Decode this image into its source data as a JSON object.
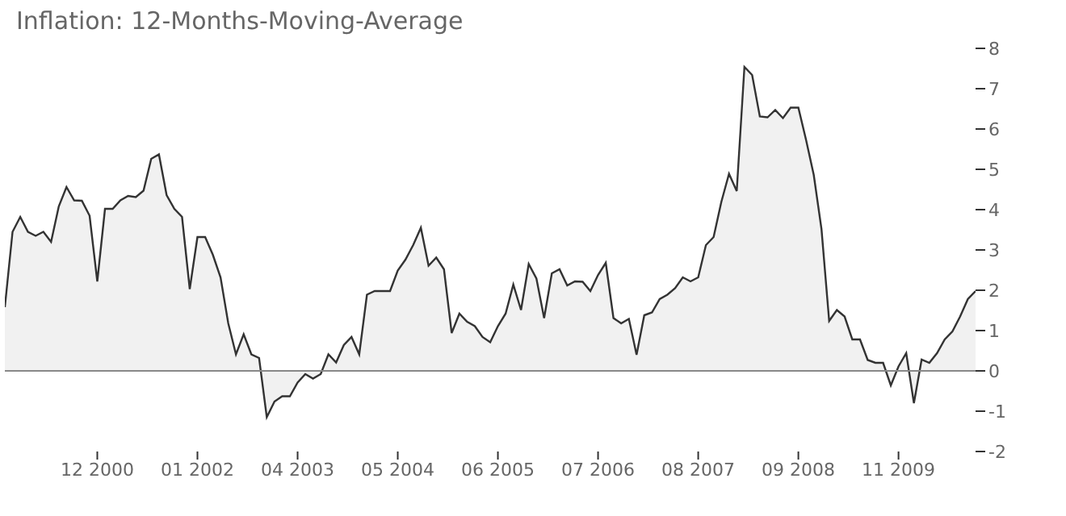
{
  "chart_data": {
    "type": "area",
    "title": "Inflation: 12-Months-Moving-Average",
    "categories": [
      null,
      null,
      null,
      null,
      null,
      null,
      null,
      null,
      null,
      null,
      null,
      null,
      "12 2000",
      null,
      null,
      null,
      null,
      null,
      null,
      null,
      null,
      null,
      null,
      null,
      null,
      "01 2002",
      null,
      null,
      null,
      null,
      null,
      null,
      null,
      null,
      null,
      null,
      null,
      null,
      "04 2003",
      null,
      null,
      null,
      null,
      null,
      null,
      null,
      null,
      null,
      null,
      null,
      null,
      "05 2004",
      null,
      null,
      null,
      null,
      null,
      null,
      null,
      null,
      null,
      null,
      null,
      null,
      "06 2005",
      null,
      null,
      null,
      null,
      null,
      null,
      null,
      null,
      null,
      null,
      null,
      null,
      "07 2006",
      null,
      null,
      null,
      null,
      null,
      null,
      null,
      null,
      null,
      null,
      null,
      null,
      "08 2007",
      null,
      null,
      null,
      null,
      null,
      null,
      null,
      null,
      null,
      null,
      null,
      null,
      "09 2008",
      null,
      null,
      null,
      null,
      null,
      null,
      null,
      null,
      null,
      null,
      null,
      null,
      "11 2009",
      null,
      null,
      null,
      null,
      null,
      null,
      null,
      null,
      null,
      null
    ],
    "series": [
      {
        "color": "#333333",
        "values": [
          1.58,
          3.45,
          3.82,
          3.45,
          3.35,
          3.45,
          3.2,
          4.08,
          4.56,
          4.23,
          4.22,
          3.85,
          2.22,
          4.02,
          4.02,
          4.23,
          4.34,
          4.31,
          4.47,
          5.26,
          5.37,
          4.36,
          4.02,
          3.82,
          2.03,
          3.32,
          3.32,
          2.88,
          2.32,
          1.18,
          0.41,
          0.91,
          0.41,
          0.32,
          -1.15,
          -0.76,
          -0.63,
          -0.63,
          -0.29,
          -0.08,
          -0.19,
          -0.08,
          0.41,
          0.21,
          0.64,
          0.84,
          0.41,
          1.89,
          1.98,
          1.98,
          1.98,
          2.49,
          2.76,
          3.12,
          3.55,
          2.61,
          2.81,
          2.52,
          0.94,
          1.42,
          1.22,
          1.11,
          0.84,
          0.71,
          1.11,
          1.42,
          2.14,
          1.51,
          2.65,
          2.29,
          1.31,
          2.42,
          2.52,
          2.12,
          2.22,
          2.21,
          1.98,
          2.38,
          2.68,
          1.31,
          1.18,
          1.29,
          0.4,
          1.38,
          1.45,
          1.78,
          1.89,
          2.05,
          2.32,
          2.22,
          2.32,
          3.12,
          3.32,
          4.19,
          4.89,
          4.46,
          7.54,
          7.34,
          6.31,
          6.29,
          6.47,
          6.27,
          6.53,
          6.53,
          5.73,
          4.86,
          3.52,
          1.24,
          1.51,
          1.35,
          0.78,
          0.78,
          0.27,
          0.2,
          0.2,
          -0.36,
          0.11,
          0.44,
          -0.8,
          0.28,
          0.2,
          0.44,
          0.78,
          0.98,
          1.35,
          1.78,
          1.98
        ]
      }
    ],
    "ylim": [
      -2,
      8
    ],
    "yticks": [
      -2,
      -1,
      0,
      1,
      2,
      3,
      4,
      5,
      6,
      7,
      8
    ],
    "ref_lines": [
      {
        "axis": "y",
        "value": 0,
        "color": "#888888"
      }
    ],
    "grid": false,
    "legend": false
  }
}
